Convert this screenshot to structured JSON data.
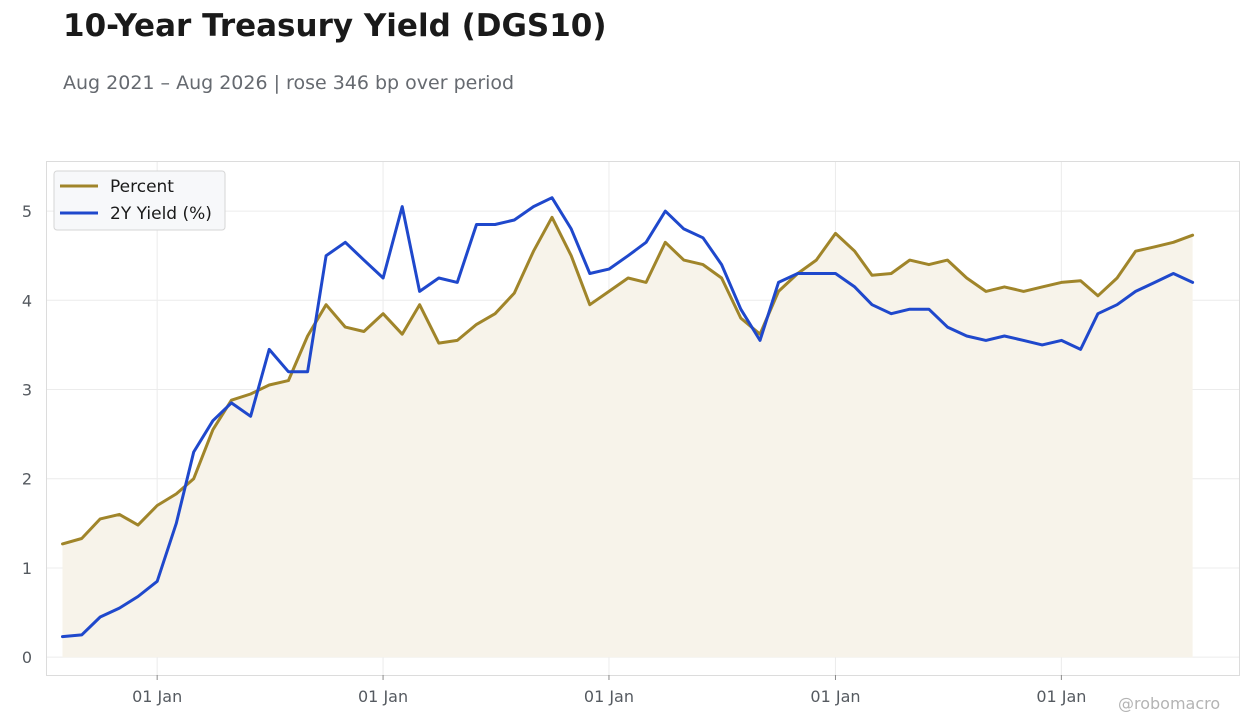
{
  "title": "10-Year Treasury Yield (DGS10)",
  "subtitle": "Aug 2021 – Aug 2026 | rose 346 bp over period",
  "watermark": "@robomacro",
  "colors": {
    "percent": "#a0852a",
    "two_year": "#1f48cc",
    "fill": "#f7f3ea",
    "grid": "#ececec",
    "frame": "#dcdcdc"
  },
  "chart_data": {
    "type": "line",
    "x_ticks": [
      "01 Jan",
      "01 Jan",
      "01 Jan",
      "01 Jan",
      "01 Jan"
    ],
    "x_tick_dates": [
      "2022-01-01",
      "2023-01-01",
      "2024-01-01",
      "2025-01-01",
      "2026-01-01"
    ],
    "x_range": [
      "2021-07-07",
      "2026-10-15"
    ],
    "ylim": [
      -0.2,
      5.55
    ],
    "y_ticks": [
      0,
      1,
      2,
      3,
      4,
      5
    ],
    "grid": true,
    "legend_position": "top-left",
    "area_fill_series": "Percent",
    "series": [
      {
        "name": "Percent",
        "x": [
          "2021-08-01",
          "2021-09-01",
          "2021-10-01",
          "2021-11-01",
          "2021-12-01",
          "2022-01-01",
          "2022-02-01",
          "2022-03-01",
          "2022-04-01",
          "2022-05-01",
          "2022-06-01",
          "2022-07-01",
          "2022-08-01",
          "2022-09-01",
          "2022-10-01",
          "2022-11-01",
          "2022-12-01",
          "2023-01-01",
          "2023-02-01",
          "2023-03-01",
          "2023-04-01",
          "2023-05-01",
          "2023-06-01",
          "2023-07-01",
          "2023-08-01",
          "2023-09-01",
          "2023-10-01",
          "2023-11-01",
          "2023-12-01",
          "2024-01-01",
          "2024-02-01",
          "2024-03-01",
          "2024-04-01",
          "2024-05-01",
          "2024-06-01",
          "2024-07-01",
          "2024-08-01",
          "2024-09-01",
          "2024-10-01",
          "2024-11-01",
          "2024-12-01",
          "2025-01-01",
          "2025-02-01",
          "2025-03-01",
          "2025-04-01",
          "2025-05-01",
          "2025-06-01",
          "2025-07-01",
          "2025-08-01",
          "2025-09-01",
          "2025-10-01",
          "2025-11-01",
          "2025-12-01",
          "2026-01-01",
          "2026-02-01",
          "2026-03-01",
          "2026-04-01",
          "2026-05-01",
          "2026-06-01",
          "2026-07-01",
          "2026-08-01"
        ],
        "values": [
          1.27,
          1.33,
          1.55,
          1.6,
          1.48,
          1.7,
          1.83,
          2.0,
          2.55,
          2.88,
          2.95,
          3.05,
          3.1,
          3.6,
          3.95,
          3.7,
          3.65,
          3.85,
          3.62,
          3.95,
          3.52,
          3.55,
          3.73,
          3.85,
          4.08,
          4.55,
          4.93,
          4.5,
          3.95,
          4.1,
          4.25,
          4.2,
          4.65,
          4.45,
          4.4,
          4.25,
          3.8,
          3.62,
          4.1,
          4.3,
          4.45,
          4.75,
          4.55,
          4.28,
          4.3,
          4.45,
          4.4,
          4.45,
          4.25,
          4.1,
          4.15,
          4.1,
          4.15,
          4.2,
          4.22,
          4.05,
          4.25,
          4.55,
          4.6,
          4.65,
          4.73
        ]
      },
      {
        "name": "2Y Yield (%)",
        "x": [
          "2021-08-01",
          "2021-09-01",
          "2021-10-01",
          "2021-11-01",
          "2021-12-01",
          "2022-01-01",
          "2022-02-01",
          "2022-03-01",
          "2022-04-01",
          "2022-05-01",
          "2022-06-01",
          "2022-07-01",
          "2022-08-01",
          "2022-09-01",
          "2022-10-01",
          "2022-11-01",
          "2022-12-01",
          "2023-01-01",
          "2023-02-01",
          "2023-03-01",
          "2023-04-01",
          "2023-05-01",
          "2023-06-01",
          "2023-07-01",
          "2023-08-01",
          "2023-09-01",
          "2023-10-01",
          "2023-11-01",
          "2023-12-01",
          "2024-01-01",
          "2024-02-01",
          "2024-03-01",
          "2024-04-01",
          "2024-05-01",
          "2024-06-01",
          "2024-07-01",
          "2024-08-01",
          "2024-09-01",
          "2024-10-01",
          "2024-11-01",
          "2024-12-01",
          "2025-01-01",
          "2025-02-01",
          "2025-03-01",
          "2025-04-01",
          "2025-05-01",
          "2025-06-01",
          "2025-07-01",
          "2025-08-01",
          "2025-09-01",
          "2025-10-01",
          "2025-11-01",
          "2025-12-01",
          "2026-01-01",
          "2026-02-01",
          "2026-03-01",
          "2026-04-01",
          "2026-05-01",
          "2026-06-01",
          "2026-07-01",
          "2026-08-01"
        ],
        "values": [
          0.23,
          0.25,
          0.45,
          0.55,
          0.68,
          0.85,
          1.5,
          2.3,
          2.65,
          2.85,
          2.7,
          3.45,
          3.2,
          3.2,
          4.5,
          4.65,
          4.45,
          4.25,
          5.05,
          4.1,
          4.25,
          4.2,
          4.85,
          4.85,
          4.9,
          5.05,
          5.15,
          4.8,
          4.3,
          4.35,
          4.5,
          4.65,
          5.0,
          4.8,
          4.7,
          4.4,
          3.9,
          3.55,
          4.2,
          4.3,
          4.3,
          4.3,
          4.15,
          3.95,
          3.85,
          3.9,
          3.9,
          3.7,
          3.6,
          3.55,
          3.6,
          3.55,
          3.5,
          3.55,
          3.45,
          3.85,
          3.95,
          4.1,
          4.2,
          4.3,
          4.2
        ]
      }
    ]
  }
}
